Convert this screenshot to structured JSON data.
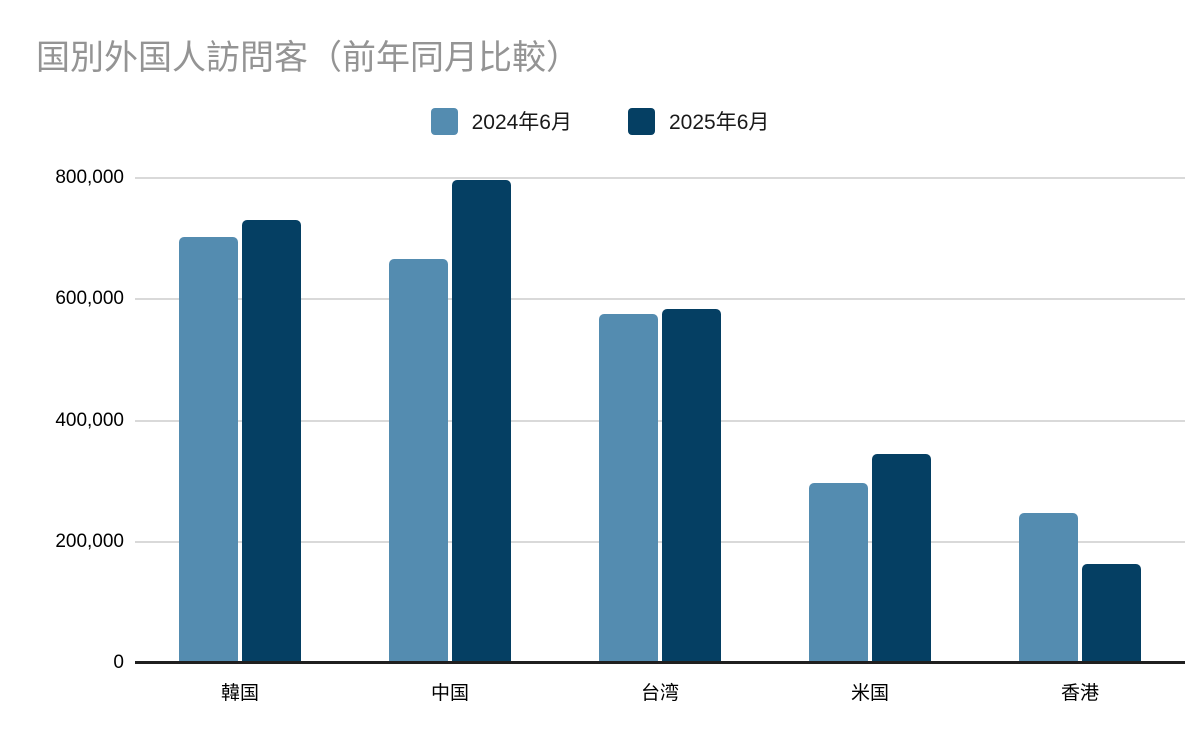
{
  "title": "国別外国人訪問客（前年同月比較）",
  "colors": {
    "series_2024": "#548cb0",
    "series_2025": "#053f63",
    "title_text": "#949494",
    "gridline": "#d9d9d9",
    "axis_line": "#1f1f1f",
    "tick_text": "#000000",
    "background": "#ffffff"
  },
  "legend": {
    "items": [
      {
        "label": "2024年6月",
        "color": "#548cb0"
      },
      {
        "label": "2025年6月",
        "color": "#053f63"
      }
    ]
  },
  "chart_data": {
    "type": "bar",
    "title": "国別外国人訪問客（前年同月比較）",
    "categories": [
      "韓国",
      "中国",
      "台湾",
      "米国",
      "香港"
    ],
    "series": [
      {
        "name": "2024年6月",
        "color": "#548cb0",
        "values": [
          703000,
          667000,
          575000,
          297000,
          248000
        ]
      },
      {
        "name": "2025年6月",
        "color": "#053f63",
        "values": [
          730000,
          797000,
          584000,
          344000,
          164000
        ]
      }
    ],
    "xlabel": "",
    "ylabel": "",
    "ylim": [
      0,
      800000
    ],
    "ytick_interval": 200000,
    "ytick_labels": [
      "0",
      "200,000",
      "400,000",
      "600,000",
      "800,000"
    ],
    "grid": true,
    "legend_position": "top",
    "bar_corner_radius": "rounded-top",
    "orientation": "vertical"
  }
}
